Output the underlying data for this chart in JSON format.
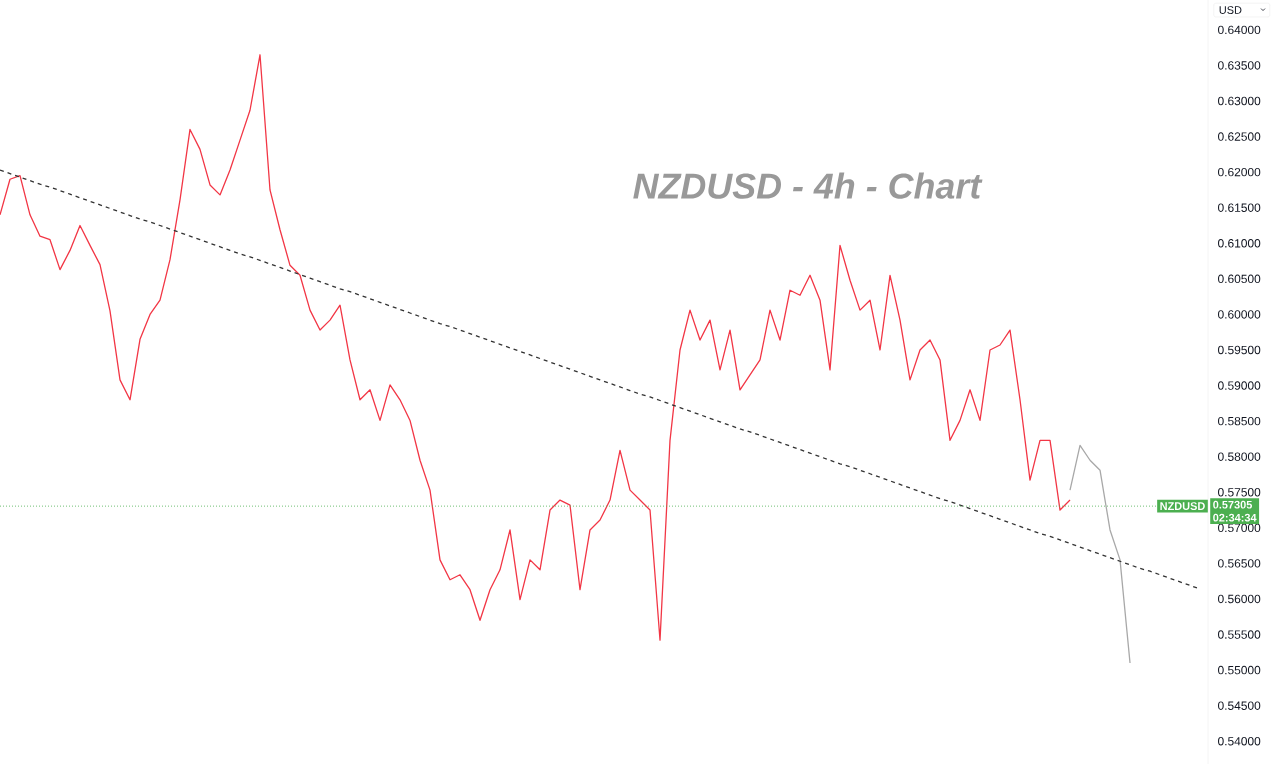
{
  "chart_data": {
    "type": "line",
    "title": "NZDUSD  - 4h - Chart",
    "ylim": [
      0.5368,
      0.6442
    ],
    "tick_labels": "y",
    "categories": [
      null,
      null,
      null,
      null,
      null,
      null,
      null,
      null,
      null,
      null,
      null,
      null,
      null,
      null,
      null,
      null,
      null,
      null,
      null,
      null,
      null,
      null,
      null,
      null,
      null,
      null,
      null,
      null,
      null,
      null,
      null,
      null,
      null,
      null,
      null,
      null,
      null,
      null,
      null,
      null,
      null,
      null,
      null,
      null,
      null,
      null,
      null,
      null,
      null,
      null,
      null,
      null,
      null,
      null,
      null,
      null,
      null,
      null,
      null,
      null,
      null,
      null,
      null,
      null,
      null,
      null,
      null,
      null,
      null,
      null,
      null,
      null,
      null,
      null,
      null,
      null,
      null,
      null,
      null,
      null,
      null,
      null,
      null,
      null,
      null,
      null,
      null,
      null,
      null,
      null,
      null,
      null,
      null,
      null,
      null,
      null,
      null,
      null,
      null,
      null,
      null,
      null,
      null,
      null,
      null,
      null,
      null,
      null,
      null,
      null,
      null,
      null,
      null,
      null,
      null,
      null,
      null,
      null,
      null,
      null,
      null
    ],
    "yticks": [
      {
        "value": 0.54,
        "label": "0.54000"
      },
      {
        "value": 0.545,
        "label": "0.54500"
      },
      {
        "value": 0.55,
        "label": "0.55000"
      },
      {
        "value": 0.555,
        "label": "0.55500"
      },
      {
        "value": 0.56,
        "label": "0.56000"
      },
      {
        "value": 0.565,
        "label": "0.56500"
      },
      {
        "value": 0.57,
        "label": "0.57000"
      },
      {
        "value": 0.575,
        "label": "0.57500"
      },
      {
        "value": 0.58,
        "label": "0.58000"
      },
      {
        "value": 0.585,
        "label": "0.58500"
      },
      {
        "value": 0.59,
        "label": "0.59000"
      },
      {
        "value": 0.595,
        "label": "0.59500"
      },
      {
        "value": 0.6,
        "label": "0.60000"
      },
      {
        "value": 0.605,
        "label": "0.60500"
      },
      {
        "value": 0.61,
        "label": "0.61000"
      },
      {
        "value": 0.615,
        "label": "0.61500"
      },
      {
        "value": 0.62,
        "label": "0.62000"
      },
      {
        "value": 0.625,
        "label": "0.62500"
      },
      {
        "value": 0.63,
        "label": "0.63000"
      },
      {
        "value": 0.635,
        "label": "0.63500"
      },
      {
        "value": 0.64,
        "label": "0.64000"
      }
    ],
    "series": [
      {
        "color": "#f23645",
        "values": [
          0.614,
          0.619,
          0.6195,
          0.614,
          0.611,
          0.6105,
          0.6063,
          0.609,
          0.6125,
          0.6097,
          0.607,
          0.6005,
          0.5908,
          0.588,
          0.5965,
          0.6,
          0.602,
          0.6077,
          0.6161,
          0.626,
          0.6232,
          0.6182,
          0.6168,
          0.6203,
          0.6245,
          0.6287,
          0.6365,
          0.6175,
          0.6119,
          0.6069,
          0.6055,
          0.6006,
          0.5978,
          0.5992,
          0.6013,
          0.5936,
          0.588,
          0.5894,
          0.5851,
          0.5901,
          0.588,
          0.5851,
          0.5795,
          0.5753,
          0.5655,
          0.5627,
          0.5634,
          0.5613,
          0.557,
          0.5613,
          0.5641,
          0.5697,
          0.5599,
          0.5655,
          0.5641,
          0.5725,
          0.5739,
          0.5732,
          0.5613,
          0.5697,
          0.5711,
          0.5739,
          0.5809,
          0.5753,
          0.5739,
          0.5725,
          0.5542,
          0.5823,
          0.595,
          0.6006,
          0.5964,
          0.5992,
          0.5922,
          0.5978,
          0.5894,
          0.5915,
          0.5936,
          0.6006,
          0.5964,
          0.6034,
          0.6027,
          0.6055,
          0.602,
          0.5922,
          0.6097,
          0.6048,
          0.6006,
          0.602,
          0.595,
          0.6055,
          0.5992,
          0.5908,
          0.595,
          0.5964,
          0.5936,
          0.5823,
          0.5851,
          0.5894,
          0.5851,
          0.595,
          0.5957,
          0.5978,
          0.588,
          0.5767,
          0.5823,
          0.5823,
          0.5725,
          0.5739,
          null,
          null,
          null,
          null,
          null,
          null,
          null,
          null,
          null,
          null,
          null,
          null,
          null
        ]
      },
      {
        "color": "#a8a8a8",
        "values": [
          null,
          null,
          null,
          null,
          null,
          null,
          null,
          null,
          null,
          null,
          null,
          null,
          null,
          null,
          null,
          null,
          null,
          null,
          null,
          null,
          null,
          null,
          null,
          null,
          null,
          null,
          null,
          null,
          null,
          null,
          null,
          null,
          null,
          null,
          null,
          null,
          null,
          null,
          null,
          null,
          null,
          null,
          null,
          null,
          null,
          null,
          null,
          null,
          null,
          null,
          null,
          null,
          null,
          null,
          null,
          null,
          null,
          null,
          null,
          null,
          null,
          null,
          null,
          null,
          null,
          null,
          null,
          null,
          null,
          null,
          null,
          null,
          null,
          null,
          null,
          null,
          null,
          null,
          null,
          null,
          null,
          null,
          null,
          null,
          null,
          null,
          null,
          null,
          null,
          null,
          null,
          null,
          null,
          null,
          null,
          null,
          null,
          null,
          null,
          null,
          null,
          null,
          null,
          null,
          null,
          null,
          null,
          0.5753,
          0.5816,
          0.5795,
          0.5781,
          0.5697,
          0.5655,
          0.551,
          null,
          null,
          null,
          null,
          null,
          null,
          null
        ]
      },
      {
        "color": "#333333",
        "line_style": "dashed",
        "values": [
          0.6203,
          0.6198,
          0.6193,
          0.6188,
          0.6183,
          0.6179,
          0.6174,
          0.6169,
          0.6164,
          0.6159,
          0.6154,
          0.6149,
          0.6144,
          0.6139,
          0.6134,
          0.613,
          0.6125,
          0.612,
          0.6115,
          0.611,
          0.6105,
          0.61,
          0.6095,
          0.609,
          0.6085,
          0.6081,
          0.6076,
          0.6071,
          0.6066,
          0.6061,
          0.6056,
          0.6051,
          0.6046,
          0.6041,
          0.6036,
          0.6032,
          0.6027,
          0.6022,
          0.6017,
          0.6012,
          0.6007,
          0.6002,
          0.5997,
          0.5992,
          0.5987,
          0.5983,
          0.5978,
          0.5973,
          0.5968,
          0.5963,
          0.5958,
          0.5953,
          0.5948,
          0.5943,
          0.5938,
          0.5933,
          0.5928,
          0.5923,
          0.5918,
          0.5913,
          0.5908,
          0.5903,
          0.5898,
          0.5893,
          0.5888,
          0.5884,
          0.5879,
          0.5874,
          0.5869,
          0.5864,
          0.5859,
          0.5854,
          0.5849,
          0.5844,
          0.5839,
          0.5835,
          0.583,
          0.5825,
          0.582,
          0.5815,
          0.581,
          0.5805,
          0.58,
          0.5795,
          0.579,
          0.5786,
          0.5781,
          0.5776,
          0.5771,
          0.5766,
          0.5761,
          0.5756,
          0.5751,
          0.5746,
          0.5741,
          0.5737,
          0.5732,
          0.5727,
          0.5722,
          0.5717,
          0.5712,
          0.5707,
          0.5702,
          0.5697,
          0.5692,
          0.5688,
          0.5683,
          0.5678,
          0.5673,
          0.5668,
          0.5663,
          0.5658,
          0.5653,
          0.5648,
          0.5643,
          0.5639,
          0.5634,
          0.5629,
          0.5624,
          0.5619,
          0.5614
        ]
      }
    ],
    "ref_lines": [
      {
        "axis": "y",
        "value": 0.57305,
        "label": "NZDUSD",
        "color": "#4caf50",
        "line_style": "dotted"
      }
    ],
    "annotations": [
      "0.57305",
      "02:34:34",
      "USD"
    ]
  }
}
